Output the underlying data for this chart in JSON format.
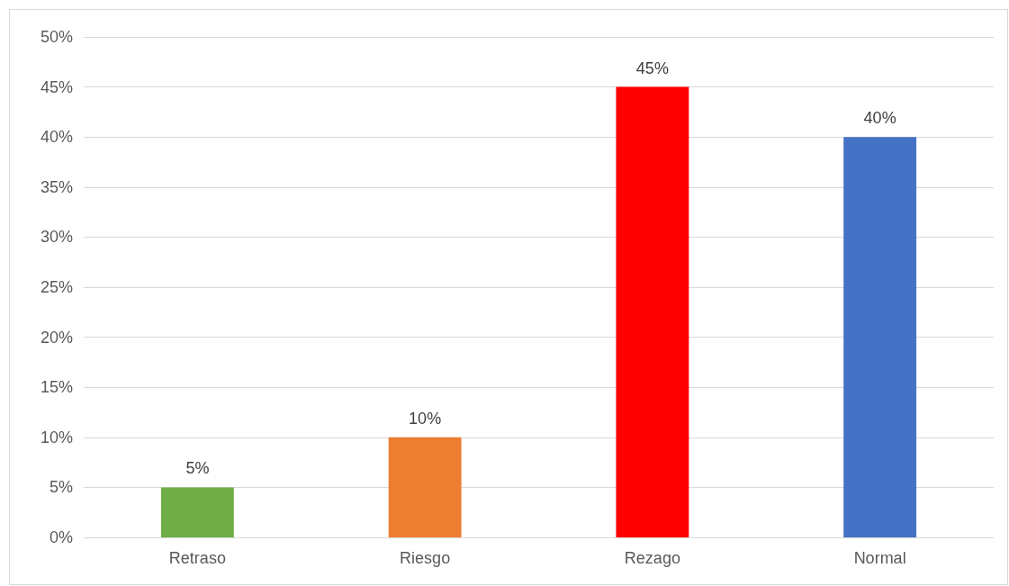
{
  "chart_data": {
    "type": "bar",
    "categories": [
      "Retraso",
      "Riesgo",
      "Rezago",
      "Normal"
    ],
    "values": [
      5,
      10,
      45,
      40
    ],
    "colors": [
      "#70ad47",
      "#ed7d31",
      "#ff0000",
      "#4472c4"
    ],
    "value_labels": [
      "5%",
      "10%",
      "45%",
      "40%"
    ],
    "ylim": [
      0,
      50
    ],
    "yticks": [
      {
        "value": 0,
        "label": "0%"
      },
      {
        "value": 5,
        "label": "5%"
      },
      {
        "value": 10,
        "label": "10%"
      },
      {
        "value": 15,
        "label": "15%"
      },
      {
        "value": 20,
        "label": "20%"
      },
      {
        "value": 25,
        "label": "25%"
      },
      {
        "value": 30,
        "label": "30%"
      },
      {
        "value": 35,
        "label": "35%"
      },
      {
        "value": 40,
        "label": "40%"
      },
      {
        "value": 45,
        "label": "45%"
      },
      {
        "value": 50,
        "label": "50%"
      }
    ],
    "grid": "y"
  }
}
